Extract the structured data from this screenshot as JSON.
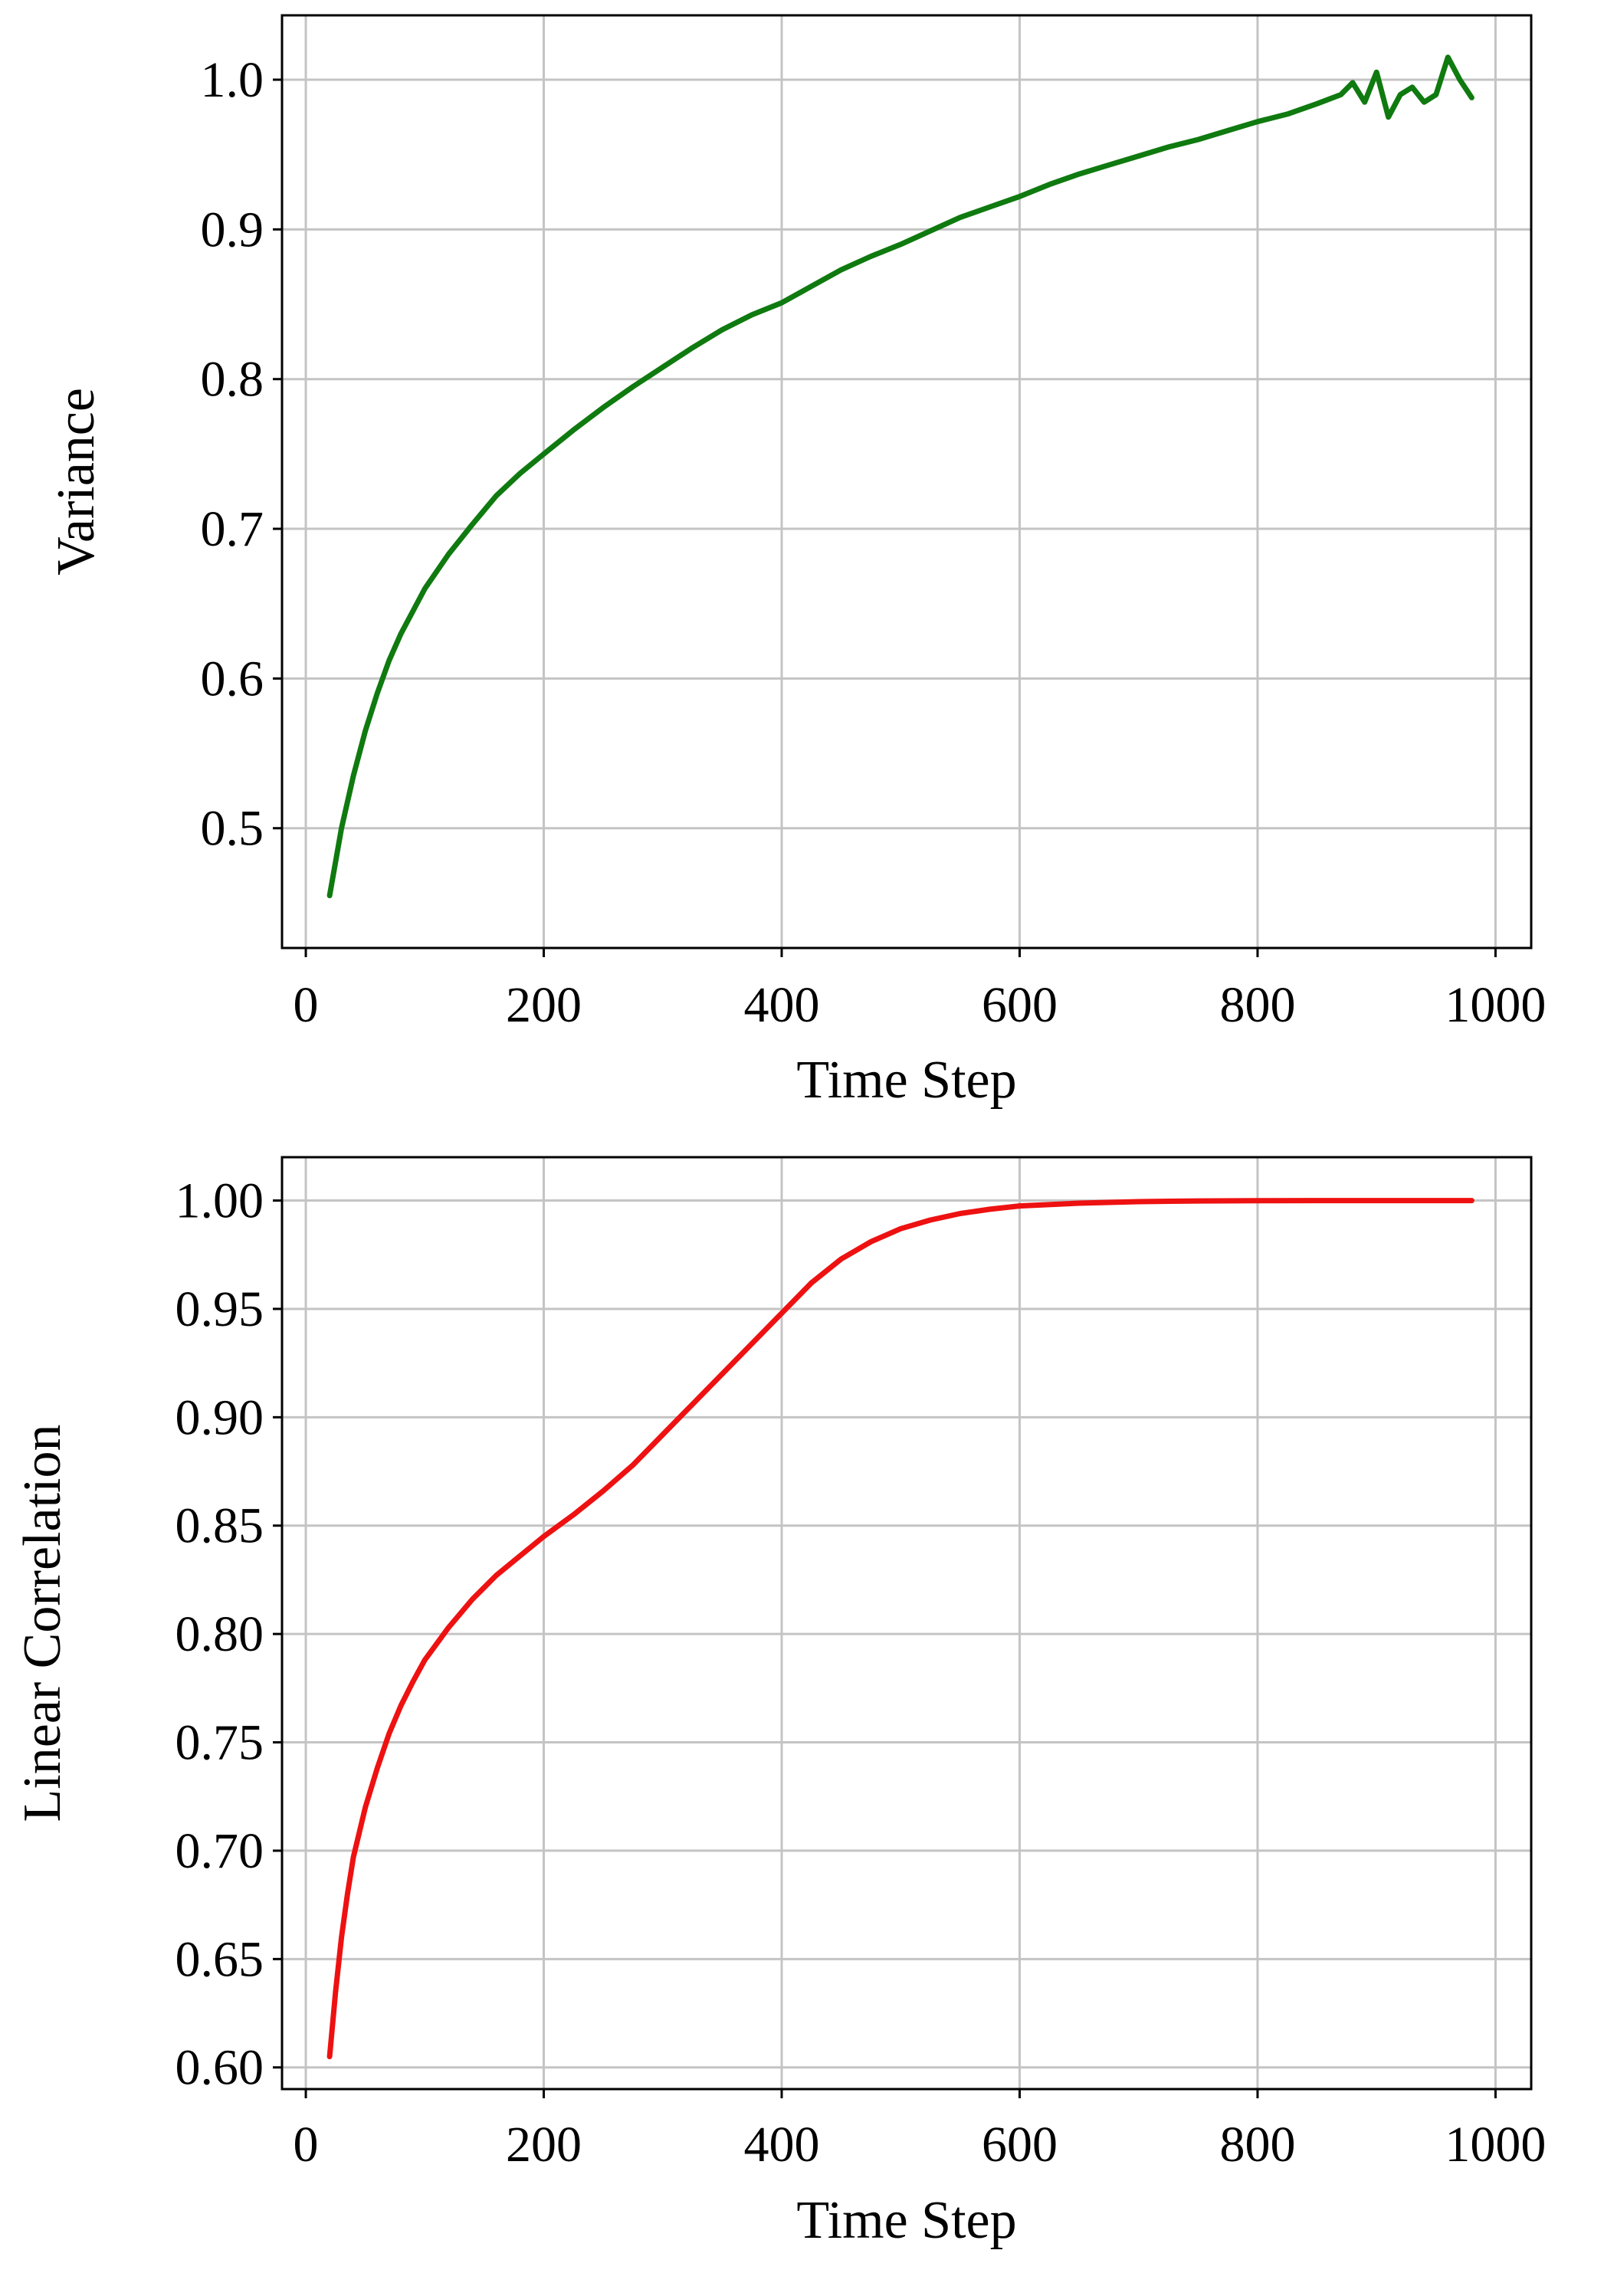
{
  "chart_data": [
    {
      "type": "line",
      "xlabel": "Time Step",
      "ylabel": "Variance",
      "xlim": [
        -20,
        1030
      ],
      "ylim": [
        0.42,
        1.043
      ],
      "xticks": [
        0,
        200,
        400,
        600,
        800,
        1000
      ],
      "xtick_labels": [
        "0",
        "200",
        "400",
        "600",
        "800",
        "1000"
      ],
      "yticks": [
        0.5,
        0.6,
        0.7,
        0.8,
        0.9,
        1.0
      ],
      "ytick_labels": [
        "0.5",
        "0.6",
        "0.7",
        "0.8",
        "0.9",
        "1.0"
      ],
      "grid": true,
      "color": "#0f7a0f",
      "series": [
        {
          "x": [
            20,
            30,
            40,
            50,
            60,
            70,
            80,
            90,
            100,
            120,
            140,
            160,
            180,
            200,
            225,
            250,
            275,
            300,
            325,
            350,
            375,
            400,
            425,
            450,
            475,
            500,
            525,
            550,
            575,
            600,
            625,
            650,
            675,
            700,
            725,
            750,
            775,
            800,
            825,
            850,
            870,
            880,
            890,
            900,
            910,
            920,
            930,
            940,
            950,
            960,
            970,
            980
          ],
          "values": [
            0.455,
            0.5,
            0.535,
            0.565,
            0.59,
            0.612,
            0.63,
            0.645,
            0.66,
            0.683,
            0.703,
            0.722,
            0.737,
            0.75,
            0.766,
            0.781,
            0.795,
            0.808,
            0.821,
            0.833,
            0.843,
            0.851,
            0.862,
            0.873,
            0.882,
            0.89,
            0.899,
            0.908,
            0.915,
            0.922,
            0.93,
            0.937,
            0.943,
            0.949,
            0.955,
            0.96,
            0.966,
            0.972,
            0.977,
            0.984,
            0.99,
            0.998,
            0.985,
            1.005,
            0.975,
            0.99,
            0.995,
            0.985,
            0.99,
            1.015,
            1.0,
            0.988
          ]
        }
      ]
    },
    {
      "type": "line",
      "xlabel": "Time Step",
      "ylabel": "Linear Correlation",
      "xlim": [
        -20,
        1030
      ],
      "ylim": [
        0.59,
        1.02
      ],
      "xticks": [
        0,
        200,
        400,
        600,
        800,
        1000
      ],
      "xtick_labels": [
        "0",
        "200",
        "400",
        "600",
        "800",
        "1000"
      ],
      "yticks": [
        0.6,
        0.65,
        0.7,
        0.75,
        0.8,
        0.85,
        0.9,
        0.95,
        1.0
      ],
      "ytick_labels": [
        "0.60",
        "0.65",
        "0.70",
        "0.75",
        "0.80",
        "0.85",
        "0.90",
        "0.95",
        "1.00"
      ],
      "grid": true,
      "color": "#ee1111",
      "series": [
        {
          "x": [
            20,
            25,
            30,
            35,
            40,
            50,
            60,
            70,
            80,
            90,
            100,
            120,
            140,
            160,
            180,
            200,
            225,
            250,
            275,
            300,
            325,
            350,
            375,
            400,
            425,
            450,
            475,
            500,
            525,
            550,
            575,
            600,
            650,
            700,
            750,
            800,
            850,
            900,
            950,
            980
          ],
          "values": [
            0.605,
            0.635,
            0.66,
            0.68,
            0.697,
            0.72,
            0.738,
            0.754,
            0.767,
            0.778,
            0.788,
            0.803,
            0.816,
            0.827,
            0.836,
            0.845,
            0.855,
            0.866,
            0.878,
            0.892,
            0.906,
            0.92,
            0.934,
            0.948,
            0.962,
            0.973,
            0.981,
            0.987,
            0.991,
            0.994,
            0.996,
            0.9975,
            0.9988,
            0.9995,
            0.9998,
            0.9999,
            1.0,
            1.0,
            1.0,
            1.0
          ]
        }
      ]
    }
  ]
}
